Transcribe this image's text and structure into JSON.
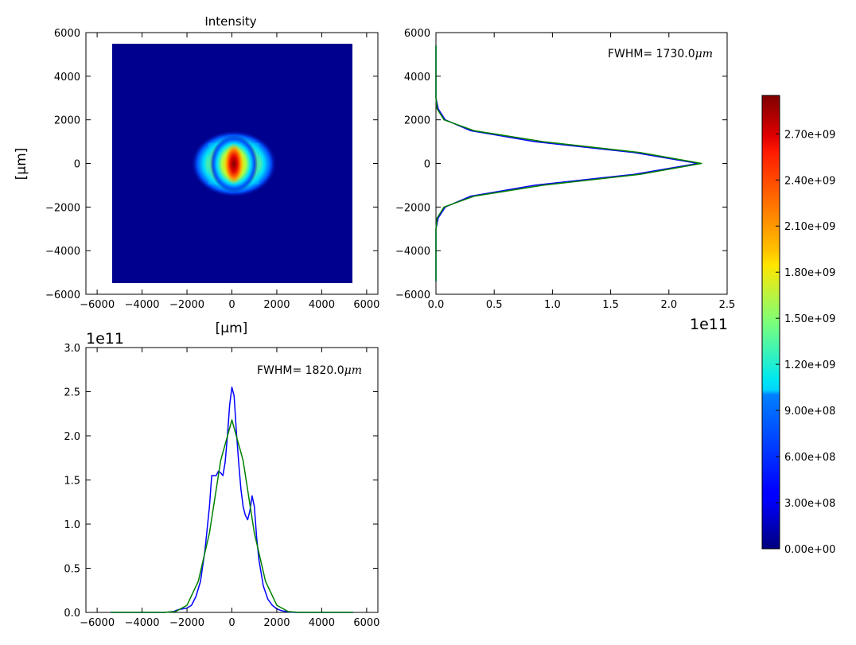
{
  "chart_data": [
    {
      "type": "heatmap",
      "title": "Intensity",
      "xlabel": "[μm]",
      "ylabel": "[μm]",
      "xlim": [
        -6500,
        6500
      ],
      "ylim": [
        -6000,
        6000
      ],
      "extent": [
        -5400,
        5400,
        -5400,
        5400
      ],
      "colormap": "jet",
      "xticks": [
        "−6000",
        "−4000",
        "−2000",
        "0",
        "2000",
        "4000",
        "6000"
      ],
      "yticks": [
        "6000",
        "4000",
        "2000",
        "0",
        "−2000",
        "−4000",
        "−6000"
      ],
      "peak_value": 2950000000.0,
      "peak_location": [
        0,
        0
      ]
    },
    {
      "type": "line",
      "orientation": "horizontal",
      "annotation": {
        "prefix": "FWHM= 1730.0",
        "unit": "μm"
      },
      "xlim": [
        0,
        2.5
      ],
      "ylim": [
        -6000,
        6000
      ],
      "x_offset_label": "1e11",
      "xticks": [
        "0.0",
        "0.5",
        "1.0",
        "1.5",
        "2.0",
        "2.5"
      ],
      "yticks": [
        "6000",
        "4000",
        "2000",
        "0",
        "−2000",
        "−4000",
        "−6000"
      ],
      "series": [
        {
          "color": "#0000ff",
          "y": [
            -5400,
            -3000,
            -2500,
            -2000,
            -1500,
            -1000,
            -500,
            0,
            500,
            1000,
            1500,
            2000,
            2500,
            3000,
            5400
          ],
          "values": [
            0,
            0,
            0.02,
            0.08,
            0.3,
            0.85,
            1.7,
            2.25,
            1.7,
            0.85,
            0.3,
            0.08,
            0.02,
            0,
            0
          ]
        },
        {
          "color": "#008000",
          "y": [
            -5400,
            -3000,
            -2500,
            -2000,
            -1500,
            -1000,
            -500,
            0,
            500,
            1000,
            1500,
            2000,
            2500,
            3000,
            5400
          ],
          "values": [
            0,
            0,
            0.01,
            0.07,
            0.33,
            0.92,
            1.75,
            2.28,
            1.75,
            0.92,
            0.33,
            0.07,
            0.01,
            0,
            0
          ]
        }
      ]
    },
    {
      "type": "line",
      "annotation": {
        "prefix": "FWHM= 1820.0",
        "unit": "μm"
      },
      "xlim": [
        -6500,
        6500
      ],
      "ylim": [
        0,
        3.0
      ],
      "y_offset_label": "1e11",
      "xticks": [
        "−6000",
        "−4000",
        "−2000",
        "0",
        "2000",
        "4000",
        "6000"
      ],
      "yticks": [
        "3.0",
        "2.5",
        "2.0",
        "1.5",
        "1.0",
        "0.5",
        "0.0"
      ],
      "series": [
        {
          "color": "#0000ff",
          "x": [
            -5400,
            -3000,
            -2600,
            -2400,
            -2200,
            -2000,
            -1800,
            -1600,
            -1400,
            -1200,
            -1000,
            -900,
            -800,
            -700,
            -600,
            -500,
            -400,
            -300,
            -200,
            -100,
            0,
            100,
            200,
            300,
            400,
            500,
            600,
            700,
            800,
            900,
            1000,
            1100,
            1200,
            1400,
            1600,
            1800,
            2000,
            2200,
            2400,
            2800,
            5400
          ],
          "values": [
            0,
            0,
            0.01,
            0.03,
            0.04,
            0.05,
            0.08,
            0.18,
            0.35,
            0.7,
            1.2,
            1.55,
            1.55,
            1.55,
            1.6,
            1.58,
            1.55,
            1.7,
            2.0,
            2.35,
            2.55,
            2.45,
            2.05,
            1.7,
            1.4,
            1.2,
            1.1,
            1.05,
            1.15,
            1.32,
            1.2,
            0.85,
            0.6,
            0.3,
            0.15,
            0.08,
            0.04,
            0.02,
            0.01,
            0,
            0
          ]
        },
        {
          "color": "#008000",
          "x": [
            -5400,
            -3000,
            -2500,
            -2000,
            -1500,
            -1000,
            -500,
            0,
            500,
            1000,
            1500,
            2000,
            2500,
            3000,
            5400
          ],
          "values": [
            0,
            0,
            0.01,
            0.08,
            0.35,
            0.9,
            1.72,
            2.18,
            1.72,
            0.9,
            0.35,
            0.08,
            0.01,
            0,
            0
          ]
        }
      ]
    },
    {
      "type": "colorbar",
      "colormap": "jet",
      "range": [
        0,
        2950000000.0
      ],
      "ticks": [
        0,
        300000000.0,
        600000000.0,
        900000000.0,
        1200000000.0,
        1500000000.0,
        1800000000.0,
        2100000000.0,
        2400000000.0,
        2700000000.0
      ],
      "tick_labels": [
        "0.00e+00",
        "3.00e+08",
        "6.00e+08",
        "9.00e+08",
        "1.20e+09",
        "1.50e+09",
        "1.80e+09",
        "2.10e+09",
        "2.40e+09",
        "2.70e+09"
      ]
    }
  ]
}
